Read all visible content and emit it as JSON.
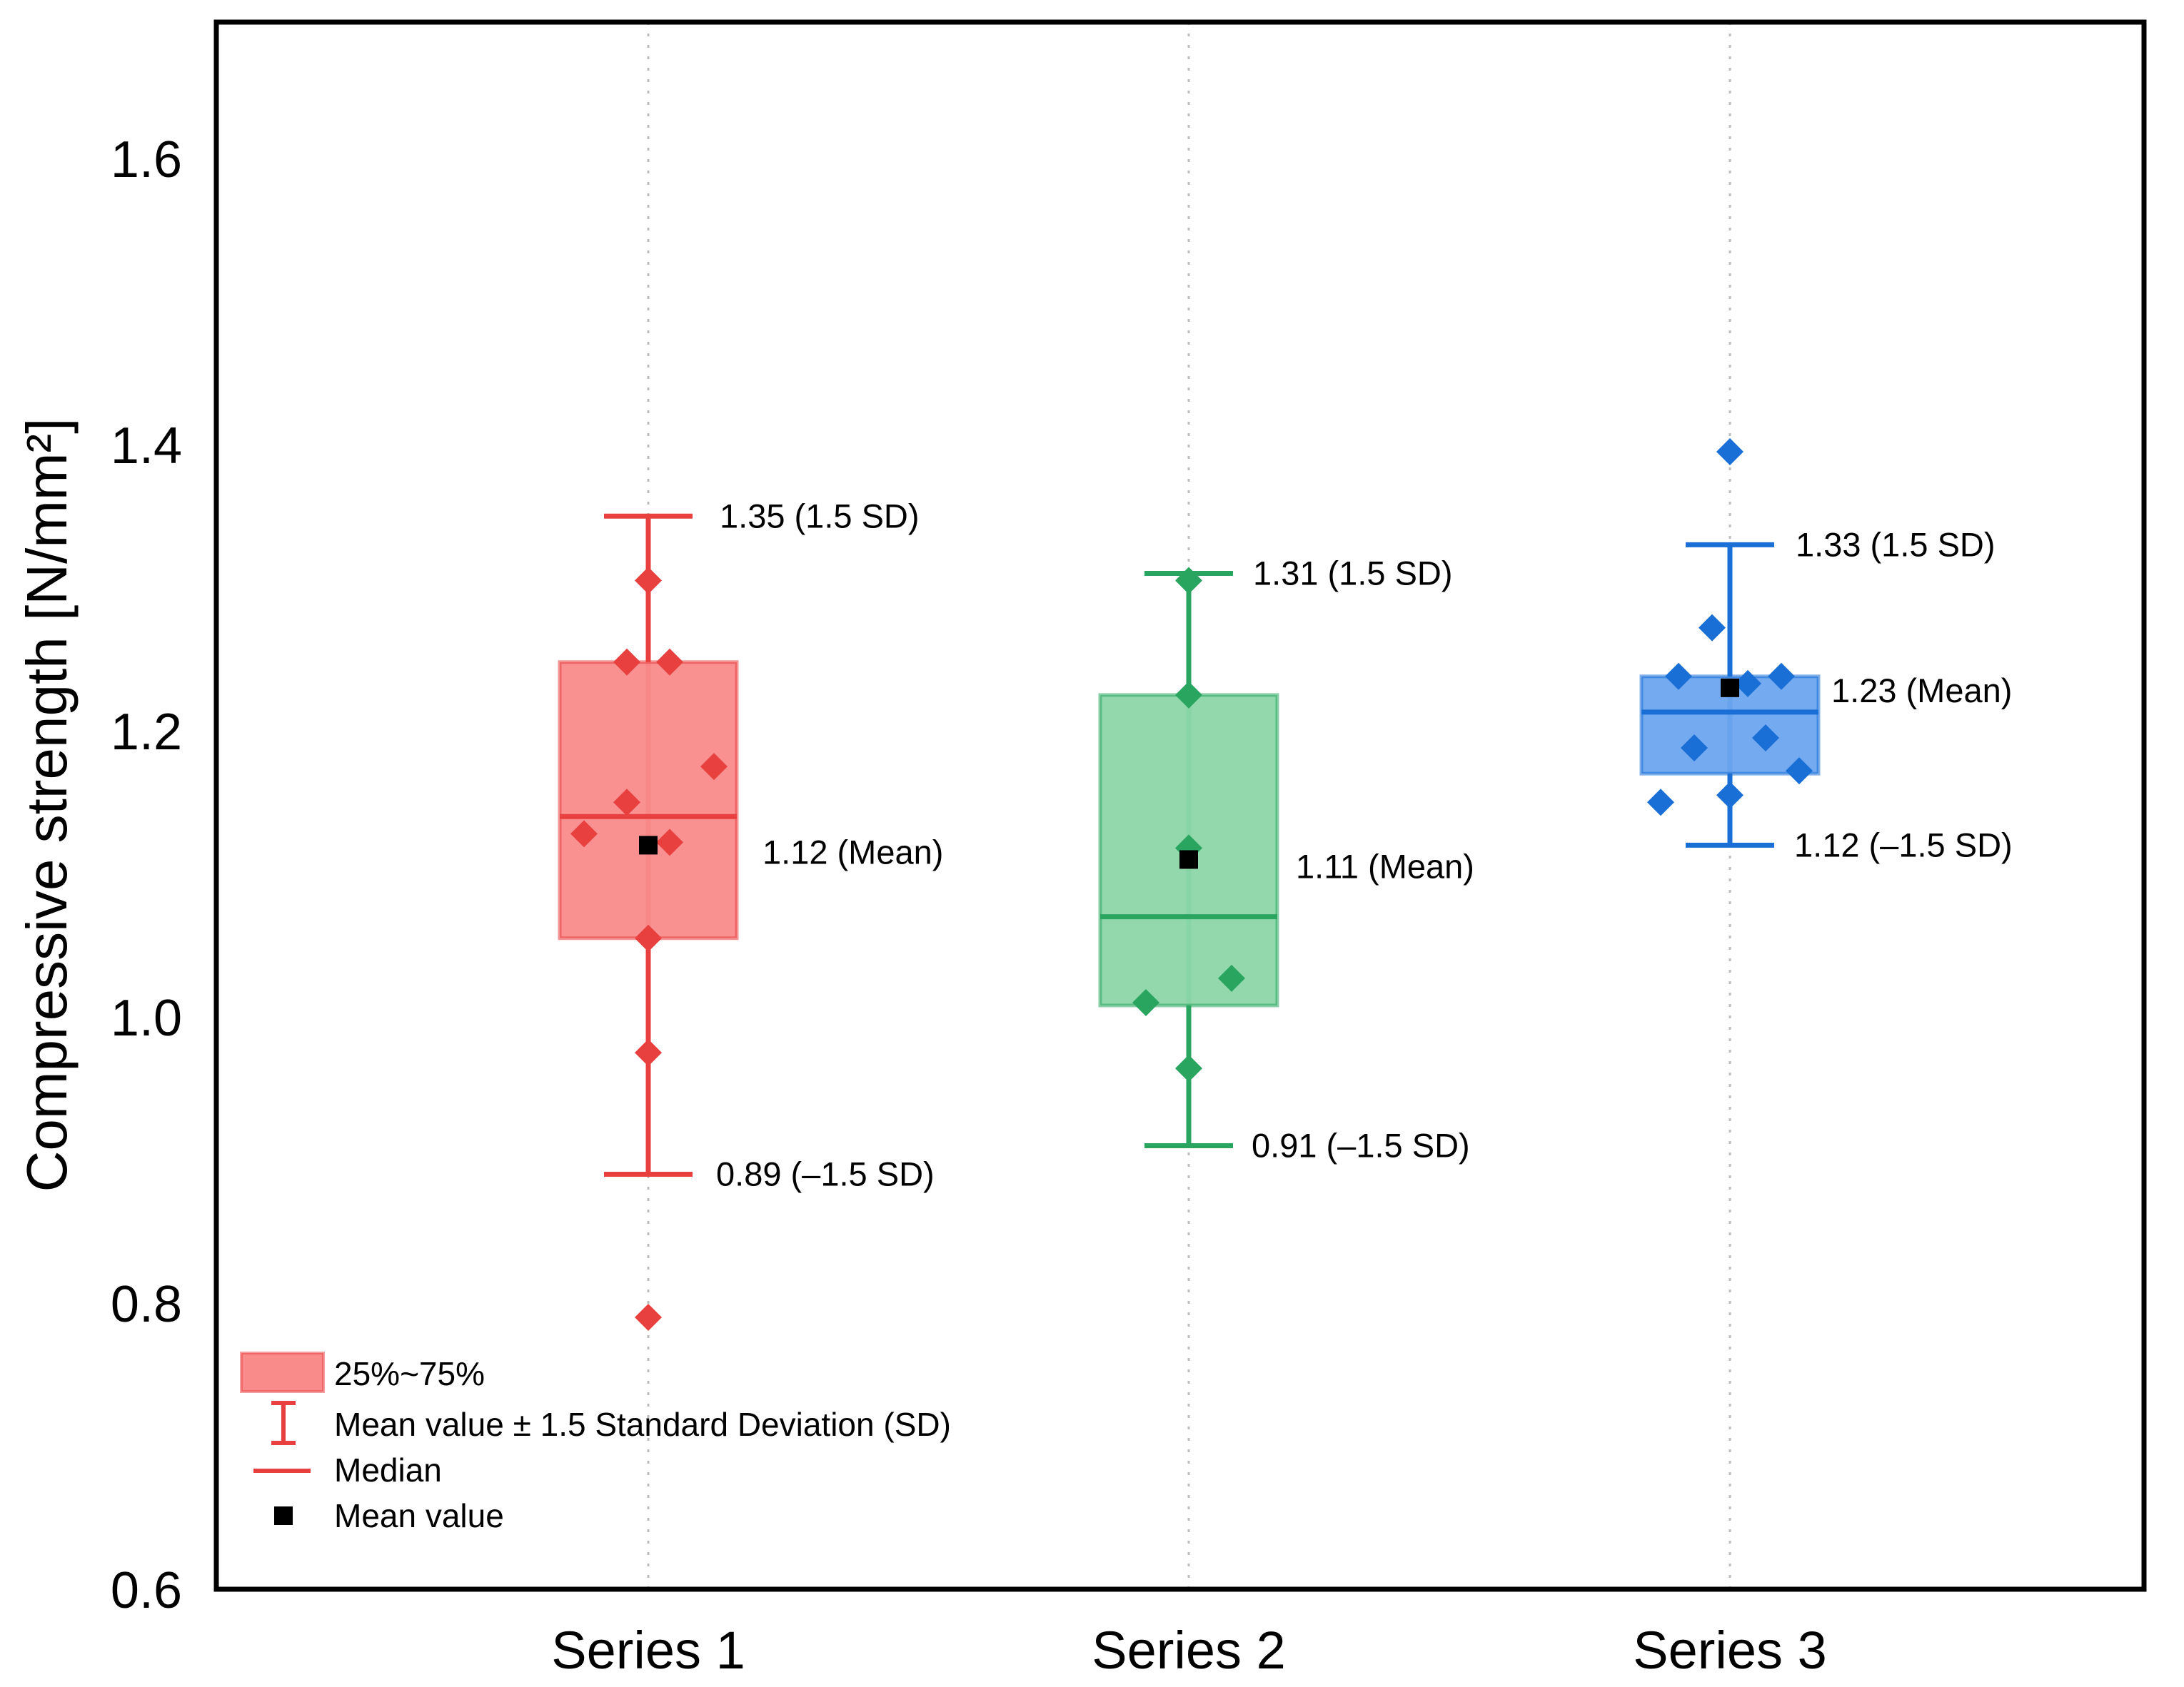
{
  "chart_data": {
    "type": "box",
    "ylabel": "Compressive strength [N/mm²]",
    "xlabel": "",
    "ylim": [
      0.6,
      1.7
    ],
    "yticks": [
      0.6,
      0.8,
      1.0,
      1.2,
      1.4,
      1.6
    ],
    "ytick_labels": [
      "0.6",
      "0.8",
      "1.0",
      "1.2",
      "1.4",
      "1.6"
    ],
    "categories": [
      "Series 1",
      "Series 2",
      "Series 3"
    ],
    "grid": "vertical dotted at categories",
    "legend": {
      "position": "bottom-left",
      "items": [
        {
          "kind": "box",
          "label": "25%~75%"
        },
        {
          "kind": "whisker",
          "label": "Mean value ± 1.5 Standard Deviation (SD)"
        },
        {
          "kind": "median",
          "label": "Median"
        },
        {
          "kind": "mean",
          "label": "Mean value"
        }
      ]
    },
    "series": [
      {
        "name": "Series 1",
        "color": "#e8403f",
        "fill": "#f98b8b",
        "q1": 1.055,
        "q3": 1.248,
        "median": 1.14,
        "mean": 1.12,
        "whisker_low": 0.89,
        "whisker_high": 1.35,
        "points": [
          1.305,
          1.248,
          1.248,
          1.175,
          1.15,
          1.128,
          1.122,
          1.055,
          0.975,
          0.79
        ],
        "annotations": {
          "upper": "1.35 (1.5 SD)",
          "mean": "1.12 (Mean)",
          "lower": "0.89 (–1.5 SD)"
        }
      },
      {
        "name": "Series 2",
        "color": "#2aa560",
        "fill": "#8cd6a8",
        "q1": 1.008,
        "q3": 1.225,
        "median": 1.07,
        "mean": 1.11,
        "whisker_low": 0.91,
        "whisker_high": 1.31,
        "points": [
          1.305,
          1.225,
          1.118,
          1.027,
          1.01,
          0.964
        ],
        "annotations": {
          "upper": "1.31 (1.5 SD)",
          "mean": "1.11 (Mean)",
          "lower": "0.91 (–1.5 SD)"
        }
      },
      {
        "name": "Series 3",
        "color": "#1a6fd6",
        "fill": "#6da5ee",
        "q1": 1.17,
        "q3": 1.238,
        "median": 1.213,
        "mean": 1.23,
        "whisker_low": 1.12,
        "whisker_high": 1.33,
        "points": [
          1.395,
          1.272,
          1.238,
          1.238,
          1.233,
          1.195,
          1.188,
          1.172,
          1.155,
          1.15
        ],
        "annotations": {
          "upper": "1.33 (1.5 SD)",
          "mean": "1.23 (Mean)",
          "lower": "1.12 (–1.5 SD)"
        }
      }
    ]
  }
}
